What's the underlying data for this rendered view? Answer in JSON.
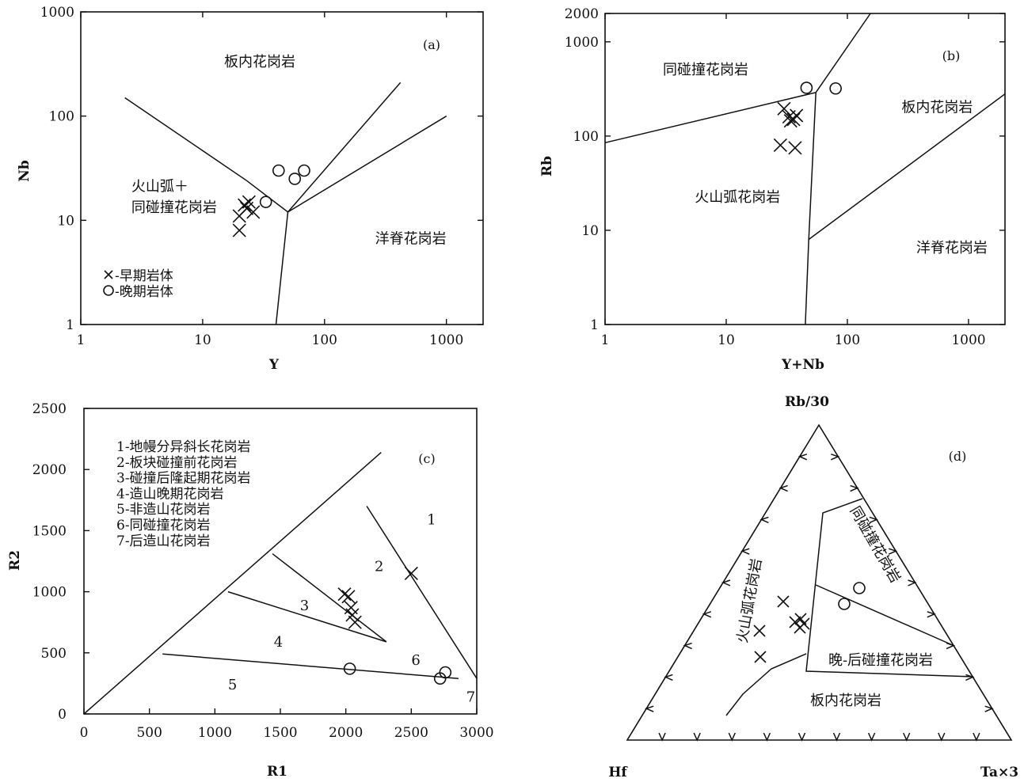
{
  "chart_data": [
    {
      "type": "scatter",
      "panel": "(a)",
      "xlabel": "Y",
      "ylabel": "Nb",
      "xscale": "log",
      "yscale": "log",
      "xlim": [
        1,
        2000
      ],
      "ylim": [
        1,
        1000
      ],
      "xticks": [
        "1",
        "10",
        "100",
        "1000"
      ],
      "yticks": [
        "1",
        "10",
        "100",
        "1000"
      ],
      "fields": [
        {
          "label": "板内花岗岩",
          "x": 15,
          "y": 300
        },
        {
          "label": "火山弧＋",
          "x": 2.6,
          "y": 19
        },
        {
          "label": "同碰撞花岗岩",
          "x": 2.6,
          "y": 12
        },
        {
          "label": "洋脊花岗岩",
          "x": 260,
          "y": 6
        }
      ],
      "boundaries": [
        [
          [
            2.3,
            150
          ],
          [
            23,
            24
          ],
          [
            50,
            12
          ],
          [
            420,
            210
          ]
        ],
        [
          [
            50,
            12
          ],
          [
            1000,
            100
          ]
        ],
        [
          [
            50,
            12
          ],
          [
            40,
            1
          ]
        ]
      ],
      "legend": [
        {
          "marker": "x",
          "label": "-早期岩体"
        },
        {
          "marker": "o",
          "label": "-晚期岩体"
        }
      ],
      "series": [
        {
          "name": "早期岩体",
          "marker": "x",
          "points": [
            [
              20,
              8
            ],
            [
              20,
              11
            ],
            [
              22,
              14
            ],
            [
              23,
              13
            ],
            [
              24,
              15
            ],
            [
              26,
              12
            ]
          ]
        },
        {
          "name": "晚期岩体",
          "marker": "o",
          "points": [
            [
              33,
              15
            ],
            [
              42,
              30
            ],
            [
              57,
              25
            ],
            [
              68,
              30
            ]
          ]
        }
      ]
    },
    {
      "type": "scatter",
      "panel": "(b)",
      "xlabel": "Y+Nb",
      "ylabel": "Rb",
      "xscale": "log",
      "yscale": "log",
      "xlim": [
        1,
        2000
      ],
      "ylim": [
        1,
        2000
      ],
      "xticks": [
        "1",
        "10",
        "100",
        "1000"
      ],
      "yticks": [
        "1",
        "10",
        "100",
        "1000",
        "2000"
      ],
      "fields": [
        {
          "label": "同碰撞花岗岩",
          "x": 3,
          "y": 450
        },
        {
          "label": "板内花岗岩",
          "x": 280,
          "y": 180
        },
        {
          "label": "火山弧花岗岩",
          "x": 5.5,
          "y": 20
        },
        {
          "label": "洋脊花岗岩",
          "x": 370,
          "y": 5.8
        }
      ],
      "boundaries": [
        [
          [
            1,
            85
          ],
          [
            55,
            290
          ],
          [
            155,
            2000
          ]
        ],
        [
          [
            55,
            290
          ],
          [
            48,
            8
          ],
          [
            45,
            1
          ]
        ],
        [
          [
            48,
            8
          ],
          [
            2000,
            280
          ]
        ]
      ],
      "series": [
        {
          "name": "早期岩体",
          "marker": "x",
          "points": [
            [
              28,
              80
            ],
            [
              30,
              195
            ],
            [
              33,
              160
            ],
            [
              34,
              145
            ],
            [
              36,
              150
            ],
            [
              37,
              75
            ],
            [
              38,
              165
            ]
          ]
        },
        {
          "name": "晚期岩体",
          "marker": "o",
          "points": [
            [
              46,
              325
            ],
            [
              80,
              320
            ]
          ]
        }
      ]
    },
    {
      "type": "scatter",
      "panel": "(c)",
      "xlabel": "R1",
      "ylabel": "R2",
      "xlim": [
        0,
        3000
      ],
      "ylim": [
        0,
        2500
      ],
      "xticks": [
        "0",
        "500",
        "1000",
        "1500",
        "2000",
        "2500",
        "3000"
      ],
      "yticks": [
        "0",
        "500",
        "1000",
        "1500",
        "2000",
        "2500"
      ],
      "legend": [
        "1-地幔分异斜长花岗岩",
        "2-板块碰撞前花岗岩",
        "3-碰撞后隆起期花岗岩",
        "4-造山晚期花岗岩",
        "5-非造山花岗岩",
        "6-同碰撞花岗岩",
        "7-后造山花岗岩"
      ],
      "fields": [
        {
          "label": "1",
          "x": 2620,
          "y": 1550
        },
        {
          "label": "2",
          "x": 2220,
          "y": 1170
        },
        {
          "label": "3",
          "x": 1650,
          "y": 850
        },
        {
          "label": "4",
          "x": 1450,
          "y": 550
        },
        {
          "label": "5",
          "x": 1100,
          "y": 200
        },
        {
          "label": "6",
          "x": 2500,
          "y": 400
        },
        {
          "label": "7",
          "x": 2920,
          "y": 100
        }
      ],
      "boundaries": [
        [
          [
            0,
            0
          ],
          [
            2270,
            2140
          ]
        ],
        [
          [
            2160,
            1700
          ],
          [
            3000,
            290
          ]
        ],
        [
          [
            1440,
            1310
          ],
          [
            2310,
            590
          ]
        ],
        [
          [
            1100,
            1000
          ],
          [
            2310,
            590
          ]
        ],
        [
          [
            600,
            490
          ],
          [
            2860,
            290
          ]
        ]
      ],
      "series": [
        {
          "name": "早期岩体",
          "marker": "x",
          "points": [
            [
              1990,
              980
            ],
            [
              2020,
              960
            ],
            [
              2040,
              870
            ],
            [
              2050,
              810
            ],
            [
              2070,
              750
            ],
            [
              2500,
              1150
            ]
          ]
        },
        {
          "name": "晚期岩体",
          "marker": "o",
          "points": [
            [
              2030,
              370
            ],
            [
              2720,
              290
            ],
            [
              2760,
              340
            ]
          ]
        }
      ]
    },
    {
      "type": "scatter",
      "panel": "(d)",
      "ternary": true,
      "apex_labels": {
        "top": "Rb/30",
        "left": "Hf",
        "right": "Ta×3"
      },
      "fields": [
        {
          "label": "火山弧花岗岩"
        },
        {
          "label": "同碰撞花岗岩"
        },
        {
          "label": "晚-后碰撞花岗岩"
        },
        {
          "label": "板内花岗岩"
        }
      ],
      "series": [
        {
          "name": "早期岩体",
          "marker": "x"
        },
        {
          "name": "晚期岩体",
          "marker": "o"
        }
      ]
    }
  ]
}
